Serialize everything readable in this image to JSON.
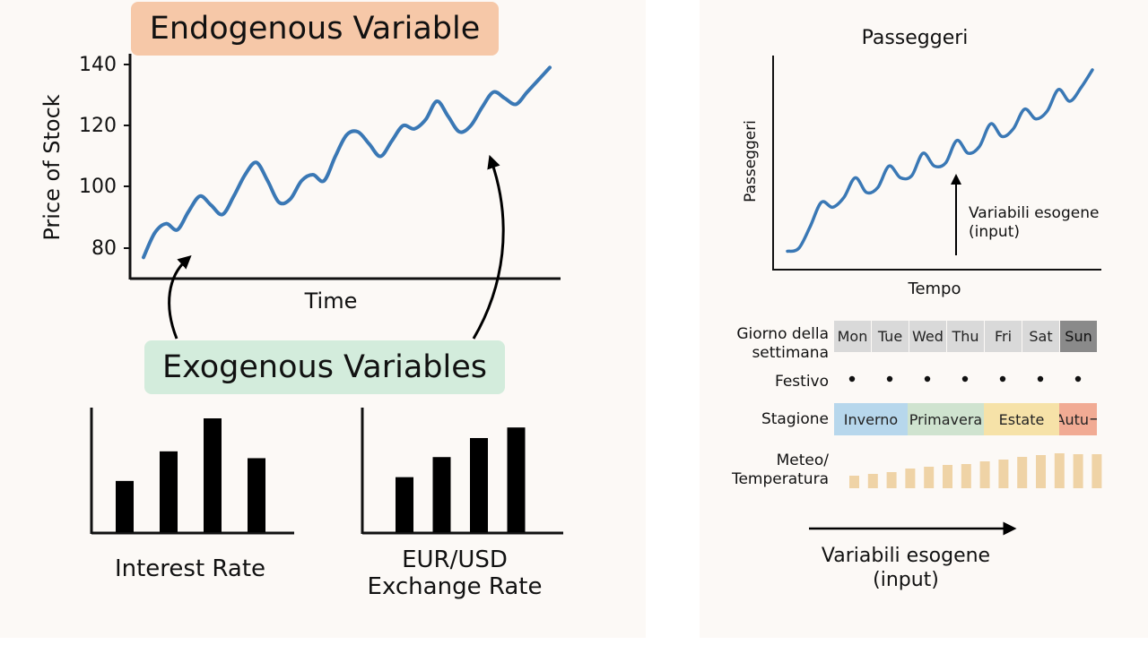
{
  "left": {
    "title": "Endogenous Variable",
    "chart": {
      "ylabel": "Price of Stock",
      "xlabel": "Time",
      "yticks": [
        "140",
        "120",
        "100",
        "80"
      ]
    },
    "exogenous_title": "Exogenous Variables",
    "bar_charts": [
      {
        "label": "Interest Rate"
      },
      {
        "label_line1": "EUR/USD",
        "label_line2": "Exchange Rate"
      }
    ]
  },
  "right": {
    "title": "Passeggeri",
    "ylabel": "Passeggeri",
    "xlabel": "Tempo",
    "annotation_line1": "Variabili esogene",
    "annotation_line2": "(input)",
    "rows": {
      "giorno_line1": "Giorno della",
      "giorno_line2": "settimana",
      "festivo": "Festivo",
      "stagione": "Stagione",
      "meteo_line1": "Meteo/",
      "meteo_line2": "Temperatura"
    },
    "days": [
      "Mon",
      "Tue",
      "Wed",
      "Thu",
      "Fri",
      "Sat",
      "Sun"
    ],
    "seasons": [
      "Inverno",
      "Primavera",
      "Estate",
      "Autu¬"
    ],
    "bottom_line1": "Variabili esogene",
    "bottom_line2": "(input)"
  },
  "colors": {
    "line": "#3a78b5",
    "endogenous_bg": "#f6c8a8",
    "exogenous_bg": "#d3ecdc",
    "day_cell": "#d9d9d9",
    "day_sunday": "#8a8a8a",
    "season_winter": "#b7d7ec",
    "season_spring": "#cfe3cf",
    "season_summer": "#f6e2a8",
    "season_autumn": "#f1ab94",
    "temperature_bar": "#efd3a6"
  },
  "chart_data": [
    {
      "type": "line",
      "ylabel": "Price of Stock",
      "xlabel": "Time",
      "ylim": [
        75,
        142
      ],
      "yticks": [
        80,
        100,
        120,
        140
      ],
      "values": [
        77,
        85,
        88,
        86,
        92,
        97,
        94,
        91,
        97,
        104,
        108,
        102,
        95,
        96,
        102,
        104,
        102,
        110,
        117,
        118,
        114,
        110,
        115,
        120,
        119,
        122,
        128,
        123,
        118,
        120,
        126,
        131,
        129,
        127,
        131,
        135,
        139
      ]
    },
    {
      "type": "bar",
      "label": "Interest Rate",
      "values": [
        45,
        71,
        100,
        65
      ]
    },
    {
      "type": "bar",
      "label": "EUR/USD Exchange Rate",
      "values": [
        52,
        71,
        89,
        99
      ]
    },
    {
      "type": "line",
      "title": "Passeggeri",
      "ylabel": "Passeggeri",
      "xlabel": "Tempo",
      "values": [
        5,
        8,
        30,
        55,
        50,
        60,
        80,
        65,
        70,
        92,
        80,
        82,
        105,
        92,
        95,
        118,
        105,
        112,
        135,
        122,
        130,
        150,
        140,
        148,
        170,
        158,
        172,
        190
      ]
    },
    {
      "type": "bar",
      "label": "Meteo/Temperatura",
      "values": [
        14,
        16,
        18,
        22,
        24,
        26,
        27,
        30,
        32,
        35,
        37,
        39,
        38,
        38
      ]
    }
  ]
}
